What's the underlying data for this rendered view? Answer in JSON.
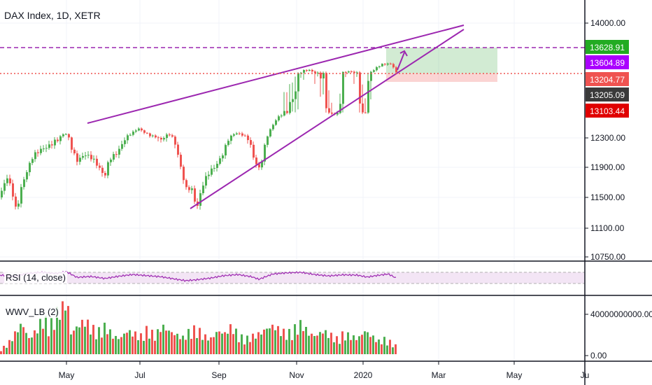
{
  "header": {
    "title": "DAX Index, 1D, XETR"
  },
  "panes": {
    "rsi_label": "RSI (14, close)",
    "wwv_label": "WWV_LB (2)"
  },
  "colors": {
    "up": "#4caf50",
    "down": "#ef5350",
    "wedge": "#9c27b0",
    "resistance_dashed": "#9c27b0",
    "support_dotted": "#ef5350",
    "rsi_line": "#9c27b0",
    "rsi_band": "#f3e5f5",
    "label_green": "#22ab22",
    "label_purple": "#aa00ff",
    "label_red": "#ef5350",
    "label_dark": "#3a3a3a",
    "label_crimson": "#e00000"
  },
  "chart_data": {
    "type": "candlestick",
    "price_axis_ticks": [
      "14000.00",
      "12300.00",
      "11900.00",
      "11500.00",
      "11100.00",
      "10750.00"
    ],
    "x_ticks": [
      "May",
      "Jul",
      "Sep",
      "Nov",
      "2020",
      "Mar",
      "May",
      "Ju"
    ],
    "volume_axis_ticks": [
      "40000000000.00",
      "0.00"
    ],
    "price_labels": [
      {
        "value": "13628.91",
        "color": "label_green"
      },
      {
        "value": "13604.89",
        "color": "label_purple"
      },
      {
        "value": "13204.77",
        "color": "label_red"
      },
      {
        "value": "13205.09",
        "color": "label_dark"
      },
      {
        "value": "13103.44",
        "color": "label_crimson"
      }
    ],
    "price_series": [
      [
        0,
        11500
      ],
      [
        8,
        11760
      ],
      [
        15,
        11640
      ],
      [
        22,
        11350
      ],
      [
        30,
        11700
      ],
      [
        45,
        12000
      ],
      [
        60,
        12150
      ],
      [
        75,
        12280
      ],
      [
        82,
        12300
      ],
      [
        92,
        12430
      ],
      [
        100,
        12150
      ],
      [
        108,
        11980
      ],
      [
        120,
        12120
      ],
      [
        130,
        12050
      ],
      [
        140,
        11870
      ],
      [
        148,
        11730
      ],
      [
        155,
        12000
      ],
      [
        165,
        12120
      ],
      [
        175,
        12280
      ],
      [
        182,
        12380
      ],
      [
        190,
        12450
      ],
      [
        196,
        12560
      ],
      [
        200,
        12510
      ],
      [
        210,
        12420
      ],
      [
        220,
        12380
      ],
      [
        230,
        12270
      ],
      [
        240,
        12390
      ],
      [
        250,
        12170
      ],
      [
        258,
        11870
      ],
      [
        265,
        11650
      ],
      [
        272,
        11670
      ],
      [
        280,
        11350
      ],
      [
        288,
        11620
      ],
      [
        296,
        11780
      ],
      [
        306,
        11920
      ],
      [
        316,
        12100
      ],
      [
        325,
        12300
      ],
      [
        335,
        12420
      ],
      [
        345,
        12360
      ],
      [
        355,
        12280
      ],
      [
        362,
        12040
      ],
      [
        370,
        11900
      ],
      [
        378,
        12220
      ],
      [
        386,
        12560
      ],
      [
        395,
        12890
      ],
      [
        405,
        13100
      ],
      [
        415,
        13170
      ],
      [
        425,
        13200
      ],
      [
        432,
        13270
      ],
      [
        440,
        13290
      ],
      [
        450,
        13220
      ],
      [
        460,
        13260
      ],
      [
        470,
        13080
      ],
      [
        480,
        13000
      ],
      [
        490,
        13220
      ],
      [
        500,
        13280
      ],
      [
        510,
        13260
      ],
      [
        518,
        13070
      ],
      [
        526,
        13180
      ],
      [
        535,
        13330
      ],
      [
        543,
        13500
      ],
      [
        550,
        13560
      ],
      [
        556,
        13600
      ],
      [
        561,
        13480
      ],
      [
        566,
        13204.77
      ]
    ],
    "rsi_series": [
      [
        0,
        60
      ],
      [
        20,
        55
      ],
      [
        40,
        66
      ],
      [
        60,
        70
      ],
      [
        80,
        66
      ],
      [
        95,
        72
      ],
      [
        110,
        52
      ],
      [
        130,
        55
      ],
      [
        150,
        48
      ],
      [
        170,
        56
      ],
      [
        190,
        62
      ],
      [
        210,
        58
      ],
      [
        230,
        54
      ],
      [
        250,
        46
      ],
      [
        265,
        40
      ],
      [
        280,
        43
      ],
      [
        300,
        49
      ],
      [
        320,
        58
      ],
      [
        340,
        62
      ],
      [
        360,
        54
      ],
      [
        370,
        45
      ],
      [
        390,
        64
      ],
      [
        410,
        68
      ],
      [
        430,
        70
      ],
      [
        450,
        62
      ],
      [
        470,
        57
      ],
      [
        490,
        61
      ],
      [
        510,
        60
      ],
      [
        525,
        53
      ],
      [
        540,
        59
      ],
      [
        555,
        64
      ],
      [
        566,
        50
      ]
    ],
    "volume_profile": [
      [
        0,
        0.1
      ],
      [
        10,
        0.2
      ],
      [
        20,
        0.4
      ],
      [
        30,
        0.6
      ],
      [
        40,
        0.3
      ],
      [
        50,
        0.45
      ],
      [
        60,
        0.7
      ],
      [
        70,
        0.55
      ],
      [
        80,
        0.8
      ],
      [
        90,
        0.95
      ],
      [
        95,
        1.0
      ],
      [
        100,
        0.4
      ],
      [
        110,
        0.55
      ],
      [
        120,
        0.65
      ],
      [
        130,
        0.5
      ],
      [
        140,
        0.45
      ],
      [
        150,
        0.55
      ],
      [
        160,
        0.35
      ],
      [
        170,
        0.3
      ],
      [
        180,
        0.45
      ],
      [
        190,
        0.4
      ],
      [
        200,
        0.35
      ],
      [
        210,
        0.5
      ],
      [
        220,
        0.35
      ],
      [
        230,
        0.55
      ],
      [
        240,
        0.45
      ],
      [
        250,
        0.38
      ],
      [
        260,
        0.32
      ],
      [
        270,
        0.45
      ],
      [
        280,
        0.5
      ],
      [
        290,
        0.35
      ],
      [
        300,
        0.3
      ],
      [
        310,
        0.45
      ],
      [
        320,
        0.4
      ],
      [
        330,
        0.55
      ],
      [
        340,
        0.35
      ],
      [
        350,
        0.3
      ],
      [
        360,
        0.35
      ],
      [
        370,
        0.4
      ],
      [
        380,
        0.5
      ],
      [
        390,
        0.55
      ],
      [
        400,
        0.45
      ],
      [
        410,
        0.4
      ],
      [
        420,
        0.5
      ],
      [
        430,
        0.6
      ],
      [
        440,
        0.4
      ],
      [
        450,
        0.35
      ],
      [
        460,
        0.45
      ],
      [
        470,
        0.38
      ],
      [
        480,
        0.3
      ],
      [
        490,
        0.4
      ],
      [
        500,
        0.35
      ],
      [
        510,
        0.3
      ],
      [
        520,
        0.45
      ],
      [
        530,
        0.35
      ],
      [
        540,
        0.25
      ],
      [
        550,
        0.3
      ],
      [
        560,
        0.2
      ],
      [
        566,
        0.15
      ]
    ],
    "wedge_upper": [
      [
        125,
        12600
      ],
      [
        663,
        14000
      ]
    ],
    "wedge_lower": [
      [
        272,
        11300
      ],
      [
        663,
        13800
      ]
    ],
    "horizontal_levels": {
      "dashed": 13628.91,
      "dotted": 13204.77
    },
    "position_box": {
      "x_start": 552,
      "x_end": 711,
      "top": 13628.91,
      "entry": 13204.77,
      "stop": 13103.44
    }
  }
}
